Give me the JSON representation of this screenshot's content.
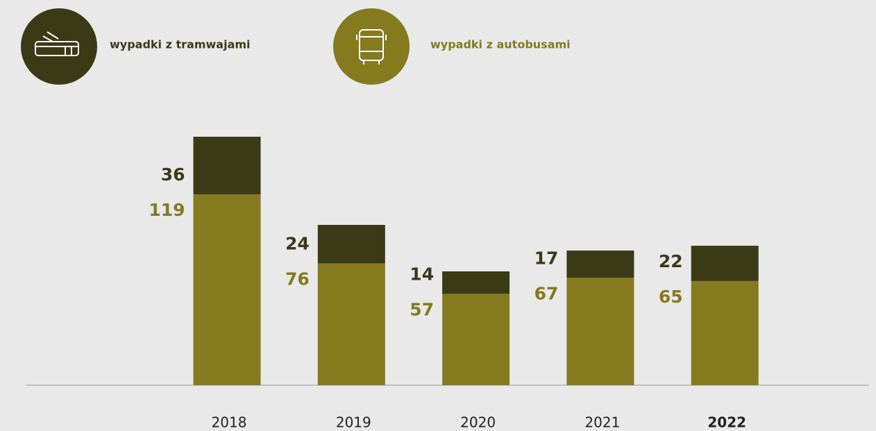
{
  "chart_data": {
    "type": "stacked_bar",
    "categories": [
      "2018",
      "2019",
      "2020",
      "2021",
      "2022"
    ],
    "series": [
      {
        "name": "wypadki z autobusami",
        "color": "#857a1e",
        "values": [
          119,
          76,
          57,
          67,
          65
        ]
      },
      {
        "name": "wypadki z tramwajami",
        "color": "#3b3a17",
        "values": [
          36,
          24,
          14,
          17,
          22
        ]
      }
    ]
  }
}
